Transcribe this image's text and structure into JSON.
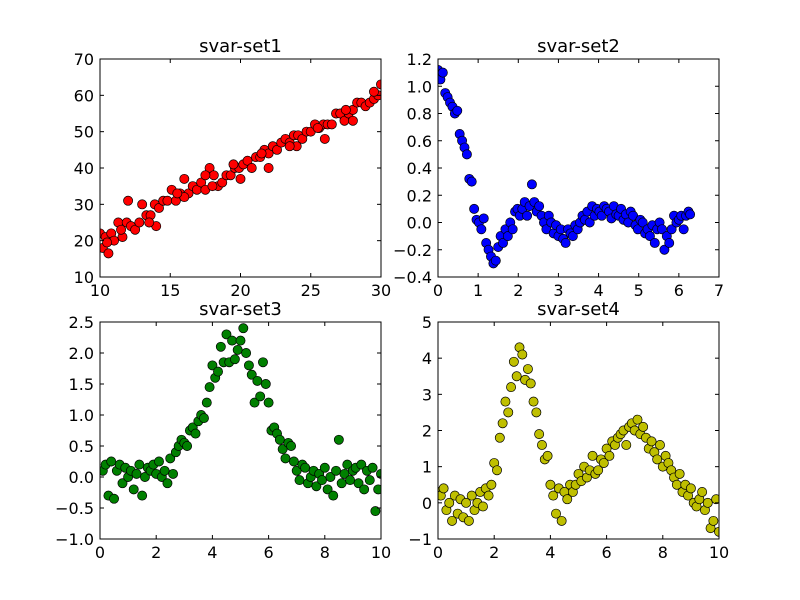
{
  "chart_data": [
    {
      "type": "scatter",
      "title": "svar-set1",
      "xlabel": "",
      "ylabel": "",
      "xlim": [
        10,
        30
      ],
      "ylim": [
        10,
        70
      ],
      "xticks": [
        "10",
        "15",
        "20",
        "25",
        "30"
      ],
      "yticks": [
        "10",
        "20",
        "30",
        "40",
        "50",
        "60",
        "70"
      ],
      "grid": false,
      "color": "#ff0000",
      "series": [
        {
          "x": [
            10.0,
            10.2,
            10.4,
            10.6,
            10.8,
            11.0,
            11.3,
            11.6,
            11.9,
            12.2,
            12.5,
            12.8,
            13.0,
            13.3,
            13.6,
            13.9,
            14.2,
            14.5,
            14.8,
            15.1,
            15.4,
            15.7,
            16.0,
            16.3,
            16.6,
            16.9,
            17.2,
            17.5,
            17.8,
            18.1,
            18.4,
            18.7,
            19.0,
            19.3,
            19.6,
            19.9,
            20.2,
            20.5,
            20.8,
            21.1,
            21.4,
            21.7,
            22.0,
            22.3,
            22.6,
            22.9,
            23.2,
            23.5,
            23.8,
            24.1,
            24.4,
            24.7,
            25.0,
            25.3,
            25.6,
            25.9,
            26.2,
            26.5,
            26.8,
            27.1,
            27.4,
            27.7,
            28.0,
            28.3,
            28.6,
            28.9,
            29.2,
            29.5,
            29.8,
            30.0,
            12.0,
            14.0,
            16.0,
            18.0,
            20.0,
            22.0,
            24.0,
            26.0,
            28.0,
            10.5,
            11.5,
            13.5,
            15.5,
            17.5,
            19.5,
            21.5,
            23.5,
            25.5,
            27.5,
            29.5
          ],
          "y": [
            22,
            18,
            21,
            16.5,
            22,
            20,
            25,
            21,
            25,
            24,
            23,
            25,
            30,
            27,
            27,
            30,
            29,
            31,
            31,
            34,
            31,
            33,
            37,
            33,
            35,
            34,
            36,
            34,
            40,
            38,
            35,
            36,
            38,
            38,
            40,
            40,
            41,
            42,
            40,
            43,
            43,
            45,
            44,
            46,
            45,
            47,
            48,
            47,
            49,
            49,
            48,
            50,
            50,
            52,
            51,
            52,
            52,
            52,
            55,
            55,
            53,
            55,
            56,
            58,
            58,
            57,
            58,
            59,
            60,
            63,
            31,
            24,
            32,
            35,
            37,
            40,
            46,
            48,
            53,
            19.5,
            23,
            25,
            33,
            38,
            41,
            44,
            46,
            51,
            56,
            61
          ]
        }
      ]
    },
    {
      "type": "scatter",
      "title": "svar-set2",
      "xlabel": "",
      "ylabel": "",
      "xlim": [
        0,
        7
      ],
      "ylim": [
        -0.4,
        1.2
      ],
      "xticks": [
        "0",
        "1",
        "2",
        "3",
        "4",
        "5",
        "6",
        "7"
      ],
      "yticks": [
        "−0.4",
        "−0.2",
        "0.0",
        "0.2",
        "0.4",
        "0.6",
        "0.8",
        "1.0",
        "1.2"
      ],
      "grid": false,
      "color": "#0000ff",
      "series": [
        {
          "x": [
            0.0,
            0.06,
            0.12,
            0.18,
            0.24,
            0.3,
            0.36,
            0.42,
            0.48,
            0.54,
            0.6,
            0.66,
            0.72,
            0.78,
            0.84,
            0.9,
            0.96,
            1.02,
            1.08,
            1.14,
            1.2,
            1.26,
            1.32,
            1.38,
            1.44,
            1.5,
            1.56,
            1.62,
            1.68,
            1.74,
            1.8,
            1.86,
            1.92,
            1.98,
            2.04,
            2.1,
            2.16,
            2.22,
            2.28,
            2.34,
            2.4,
            2.46,
            2.52,
            2.58,
            2.64,
            2.7,
            2.76,
            2.82,
            2.88,
            2.94,
            3.0,
            3.06,
            3.12,
            3.18,
            3.24,
            3.3,
            3.36,
            3.42,
            3.48,
            3.54,
            3.6,
            3.66,
            3.72,
            3.78,
            3.84,
            3.9,
            3.96,
            4.02,
            4.08,
            4.14,
            4.2,
            4.26,
            4.32,
            4.38,
            4.44,
            4.5,
            4.56,
            4.62,
            4.68,
            4.74,
            4.8,
            4.86,
            4.92,
            4.98,
            5.04,
            5.1,
            5.16,
            5.22,
            5.28,
            5.34,
            5.4,
            5.46,
            5.52,
            5.58,
            5.64,
            5.7,
            5.76,
            5.82,
            5.88,
            5.94,
            6.0,
            6.06,
            6.12,
            6.18,
            6.24,
            6.28
          ],
          "y": [
            1.12,
            1.05,
            1.1,
            0.95,
            0.92,
            0.88,
            0.85,
            0.8,
            0.82,
            0.65,
            0.6,
            0.55,
            0.5,
            0.32,
            0.3,
            0.1,
            0.02,
            0.0,
            -0.05,
            0.03,
            -0.15,
            -0.2,
            -0.25,
            -0.3,
            -0.28,
            -0.18,
            -0.1,
            -0.15,
            -0.05,
            -0.1,
            0.0,
            -0.05,
            0.08,
            0.1,
            0.05,
            0.1,
            0.15,
            0.05,
            0.12,
            0.28,
            0.15,
            0.08,
            0.12,
            0.05,
            0.0,
            -0.05,
            0.05,
            0.0,
            -0.08,
            -0.02,
            -0.1,
            -0.05,
            -0.12,
            -0.15,
            -0.05,
            -0.08,
            -0.1,
            -0.02,
            -0.05,
            0.0,
            0.05,
            0.02,
            0.08,
            0.0,
            0.12,
            0.05,
            0.1,
            0.08,
            0.05,
            0.12,
            0.1,
            0.08,
            0.03,
            0.12,
            0.06,
            0.05,
            0.1,
            0.02,
            0.06,
            0.0,
            0.08,
            0.05,
            -0.02,
            -0.05,
            0.02,
            0.0,
            -0.08,
            -0.05,
            -0.1,
            -0.02,
            -0.15,
            -0.05,
            0.0,
            -0.05,
            -0.2,
            -0.1,
            -0.15,
            -0.05,
            0.05,
            0.0,
            0.02,
            0.05,
            -0.05,
            0.05,
            0.08,
            0.06
          ]
        }
      ]
    },
    {
      "type": "scatter",
      "title": "svar-set3",
      "xlabel": "",
      "ylabel": "",
      "xlim": [
        0,
        10
      ],
      "ylim": [
        -1.0,
        2.5
      ],
      "xticks": [
        "0",
        "2",
        "4",
        "6",
        "8",
        "10"
      ],
      "yticks": [
        "−1.0",
        "−0.5",
        "0.0",
        "0.5",
        "1.0",
        "1.5",
        "2.0",
        "2.5"
      ],
      "grid": false,
      "color": "#008000",
      "series": [
        {
          "x": [
            0.1,
            0.2,
            0.3,
            0.4,
            0.5,
            0.6,
            0.7,
            0.8,
            0.9,
            1.0,
            1.1,
            1.2,
            1.3,
            1.4,
            1.5,
            1.6,
            1.7,
            1.8,
            1.9,
            2.0,
            2.1,
            2.2,
            2.3,
            2.4,
            2.5,
            2.6,
            2.7,
            2.8,
            2.9,
            3.0,
            3.1,
            3.2,
            3.3,
            3.4,
            3.5,
            3.6,
            3.7,
            3.8,
            3.9,
            4.0,
            4.1,
            4.2,
            4.3,
            4.4,
            4.5,
            4.6,
            4.7,
            4.8,
            4.9,
            5.0,
            5.1,
            5.2,
            5.3,
            5.4,
            5.5,
            5.6,
            5.7,
            5.8,
            5.9,
            6.0,
            6.1,
            6.2,
            6.3,
            6.4,
            6.5,
            6.6,
            6.7,
            6.8,
            6.9,
            7.0,
            7.1,
            7.2,
            7.3,
            7.4,
            7.5,
            7.6,
            7.7,
            7.8,
            7.9,
            8.0,
            8.1,
            8.2,
            8.3,
            8.4,
            8.5,
            8.6,
            8.7,
            8.8,
            8.9,
            9.0,
            9.1,
            9.2,
            9.3,
            9.4,
            9.5,
            9.6,
            9.7,
            9.8,
            9.9,
            10.0
          ],
          "y": [
            0.1,
            0.2,
            -0.3,
            0.25,
            -0.35,
            0.1,
            0.2,
            -0.1,
            0.15,
            0.0,
            0.1,
            -0.2,
            0.05,
            0.2,
            -0.3,
            0.0,
            0.15,
            0.1,
            0.2,
            0.05,
            0.25,
            0.0,
            0.1,
            -0.1,
            0.3,
            0.05,
            0.4,
            0.5,
            0.6,
            0.55,
            0.5,
            0.75,
            0.8,
            0.7,
            0.9,
            1.0,
            0.95,
            1.2,
            1.45,
            1.8,
            1.6,
            1.7,
            2.1,
            1.85,
            2.3,
            1.85,
            2.2,
            1.9,
            2.05,
            2.2,
            2.4,
            2.0,
            1.8,
            1.65,
            1.2,
            1.55,
            1.3,
            1.85,
            1.5,
            1.2,
            0.75,
            0.8,
            0.7,
            0.6,
            0.45,
            0.3,
            0.55,
            0.5,
            0.25,
            0.1,
            -0.05,
            0.2,
            0.15,
            -0.1,
            0.0,
            0.1,
            -0.15,
            0.05,
            -0.05,
            0.15,
            -0.2,
            0.0,
            -0.3,
            0.1,
            0.6,
            -0.1,
            0.05,
            0.2,
            -0.05,
            0.1,
            0.15,
            -0.1,
            0.2,
            -0.2,
            0.1,
            -0.05,
            0.15,
            -0.55,
            -0.2,
            0.05
          ]
        }
      ]
    },
    {
      "type": "scatter",
      "title": "svar-set4",
      "xlabel": "",
      "ylabel": "",
      "xlim": [
        0,
        10
      ],
      "ylim": [
        -1,
        5
      ],
      "xticks": [
        "0",
        "2",
        "4",
        "6",
        "8",
        "10"
      ],
      "yticks": [
        "−1",
        "0",
        "1",
        "2",
        "3",
        "4",
        "5"
      ],
      "grid": false,
      "color": "#bfbf00",
      "series": [
        {
          "x": [
            0.0,
            0.1,
            0.2,
            0.3,
            0.4,
            0.5,
            0.6,
            0.7,
            0.8,
            0.9,
            1.0,
            1.1,
            1.2,
            1.3,
            1.4,
            1.5,
            1.6,
            1.7,
            1.8,
            1.9,
            2.0,
            2.1,
            2.2,
            2.3,
            2.4,
            2.5,
            2.6,
            2.7,
            2.8,
            2.9,
            3.0,
            3.1,
            3.2,
            3.3,
            3.4,
            3.5,
            3.6,
            3.7,
            3.8,
            3.9,
            4.0,
            4.1,
            4.2,
            4.3,
            4.4,
            4.5,
            4.6,
            4.7,
            4.8,
            4.9,
            5.0,
            5.1,
            5.2,
            5.3,
            5.4,
            5.5,
            5.6,
            5.7,
            5.8,
            5.9,
            6.0,
            6.1,
            6.2,
            6.3,
            6.4,
            6.5,
            6.6,
            6.7,
            6.8,
            6.9,
            7.0,
            7.1,
            7.2,
            7.3,
            7.4,
            7.5,
            7.6,
            7.7,
            7.8,
            7.9,
            8.0,
            8.1,
            8.2,
            8.3,
            8.4,
            8.5,
            8.6,
            8.7,
            8.8,
            8.9,
            9.0,
            9.1,
            9.2,
            9.3,
            9.4,
            9.5,
            9.6,
            9.7,
            9.8,
            9.9,
            10.0
          ],
          "y": [
            0.3,
            0.2,
            0.4,
            -0.2,
            0.0,
            -0.5,
            0.2,
            -0.3,
            0.1,
            -0.4,
            0.0,
            -0.5,
            0.2,
            -0.2,
            0.0,
            0.3,
            -0.1,
            0.4,
            0.2,
            0.5,
            1.1,
            0.9,
            1.8,
            2.2,
            2.8,
            2.5,
            3.2,
            3.9,
            3.5,
            4.3,
            4.1,
            3.4,
            3.7,
            3.3,
            2.8,
            2.5,
            1.9,
            1.6,
            1.2,
            1.3,
            0.5,
            0.2,
            -0.3,
            0.4,
            -0.5,
            0.3,
            0.1,
            0.5,
            0.3,
            0.5,
            0.8,
            0.6,
            1.0,
            0.7,
            0.9,
            1.3,
            0.8,
            0.9,
            1.2,
            1.1,
            1.5,
            1.3,
            1.7,
            1.6,
            1.8,
            1.9,
            2.0,
            1.6,
            2.1,
            2.2,
            2.0,
            2.3,
            1.9,
            2.1,
            1.8,
            1.5,
            1.7,
            1.4,
            1.2,
            1.6,
            1.0,
            1.3,
            1.1,
            0.9,
            0.7,
            0.5,
            0.8,
            0.3,
            0.5,
            0.2,
            0.4,
            0.0,
            -0.1,
            0.1,
            0.3,
            -0.2,
            0.0,
            -0.7,
            -0.5,
            0.1,
            -0.8
          ]
        }
      ]
    }
  ]
}
